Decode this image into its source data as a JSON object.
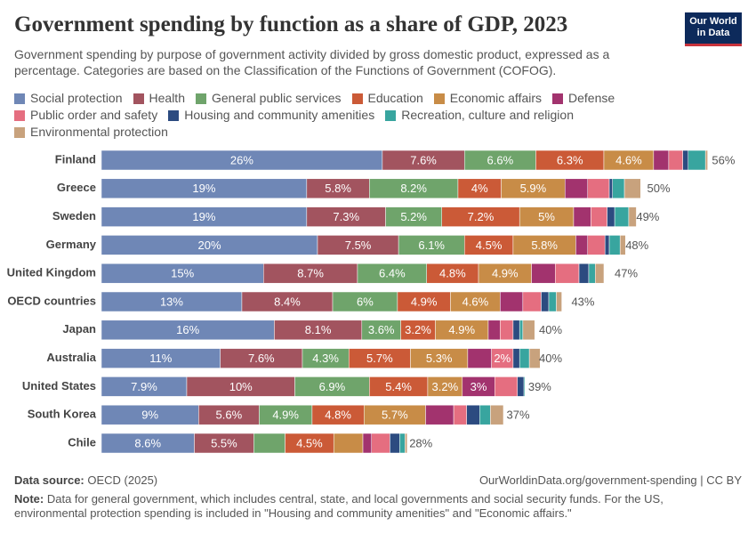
{
  "chart_data": {
    "type": "bar",
    "orientation": "horizontal",
    "stacked": true,
    "title": "Government spending by function as a share of GDP, 2023",
    "subtitle": "Government spending by purpose of government activity divided by gross domestic product, expressed as a percentage. Categories are based on the Classification of the Functions of Government (COFOG).",
    "categories": [
      "Finland",
      "Greece",
      "Sweden",
      "Germany",
      "United Kingdom",
      "OECD countries",
      "Japan",
      "Australia",
      "United States",
      "South Korea",
      "Chile"
    ],
    "series": [
      {
        "name": "Social protection",
        "color": "#6f87b6",
        "values": [
          26,
          19,
          19,
          20,
          15,
          13,
          16,
          11,
          7.9,
          9,
          8.6
        ],
        "value_labels": [
          "26%",
          "19%",
          "19%",
          "20%",
          "15%",
          "13%",
          "16%",
          "11%",
          "7.9%",
          "9%",
          "8.6%"
        ]
      },
      {
        "name": "Health",
        "color": "#a2545f",
        "values": [
          7.6,
          5.8,
          7.3,
          7.5,
          8.7,
          8.4,
          8.1,
          7.6,
          10,
          5.6,
          5.5
        ],
        "value_labels": [
          "7.6%",
          "5.8%",
          "7.3%",
          "7.5%",
          "8.7%",
          "8.4%",
          "8.1%",
          "7.6%",
          "10%",
          "5.6%",
          "5.5%"
        ]
      },
      {
        "name": "General public services",
        "color": "#6fa46b",
        "values": [
          6.6,
          8.2,
          5.2,
          6.1,
          6.4,
          6,
          3.6,
          4.3,
          6.9,
          4.9,
          2.9
        ],
        "value_labels": [
          "6.6%",
          "8.2%",
          "5.2%",
          "6.1%",
          "6.4%",
          "6%",
          "3.6%",
          "4.3%",
          "6.9%",
          "4.9%",
          null
        ]
      },
      {
        "name": "Education",
        "color": "#cb5a37",
        "values": [
          6.3,
          4,
          7.2,
          4.5,
          4.8,
          4.9,
          3.2,
          5.7,
          5.4,
          4.8,
          4.5
        ],
        "value_labels": [
          "6.3%",
          "4%",
          "7.2%",
          "4.5%",
          "4.8%",
          "4.9%",
          "3.2%",
          "5.7%",
          "5.4%",
          "4.8%",
          "4.5%"
        ]
      },
      {
        "name": "Economic affairs",
        "color": "#c88c47",
        "values": [
          4.6,
          5.9,
          5,
          5.8,
          4.9,
          4.6,
          4.9,
          5.3,
          3.2,
          5.7,
          2.7
        ],
        "value_labels": [
          "4.6%",
          "5.9%",
          "5%",
          "5.8%",
          "4.9%",
          "4.6%",
          "4.9%",
          "5.3%",
          "3.2%",
          "5.7%",
          null
        ]
      },
      {
        "name": "Defense",
        "color": "#a2336e",
        "values": [
          1.4,
          2.1,
          1.6,
          1.1,
          2.2,
          2.1,
          1.1,
          2.2,
          3,
          2.6,
          0.8
        ],
        "value_labels": [
          null,
          null,
          null,
          null,
          null,
          null,
          null,
          null,
          "3%",
          null,
          null
        ]
      },
      {
        "name": "Public order and safety",
        "color": "#e56e80",
        "values": [
          1.3,
          2,
          1.5,
          1.6,
          2.2,
          1.7,
          1.2,
          2,
          2.1,
          1.2,
          1.7
        ],
        "value_labels": [
          null,
          null,
          null,
          null,
          null,
          null,
          null,
          "2%",
          null,
          null,
          null
        ]
      },
      {
        "name": "Housing and community amenities",
        "color": "#2c4b80",
        "values": [
          0.5,
          0.3,
          0.7,
          0.4,
          0.9,
          0.7,
          0.6,
          0.6,
          0.6,
          1.2,
          0.9
        ]
      },
      {
        "name": "Recreation, culture and religion",
        "color": "#38a59f",
        "values": [
          1.6,
          1.1,
          1.3,
          1,
          0.6,
          0.7,
          0.3,
          0.9,
          0.1,
          1,
          0.5
        ]
      },
      {
        "name": "Environmental protection",
        "color": "#c8a27d",
        "values": [
          0.2,
          1.5,
          0.7,
          0.5,
          0.8,
          0.5,
          1.1,
          1,
          0,
          1.2,
          0.2
        ]
      }
    ],
    "totals": [
      56,
      50,
      49,
      48,
      47,
      43,
      40,
      40,
      39,
      37,
      28
    ],
    "total_labels": [
      "56%",
      "50%",
      "49%",
      "48%",
      "47%",
      "43%",
      "40%",
      "40%",
      "39%",
      "37%",
      "28%"
    ]
  },
  "logo": "Our World in Data",
  "footer": {
    "source_label": "Data source:",
    "source": "OECD (2025)",
    "url": "OurWorldinData.org/government-spending | CC BY",
    "note_label": "Note:",
    "note": "Data for general government, which includes central, state, and local governments and social security funds. For the US, environmental protection spending is included in \"Housing and community amenities\" and \"Economic affairs.\""
  }
}
